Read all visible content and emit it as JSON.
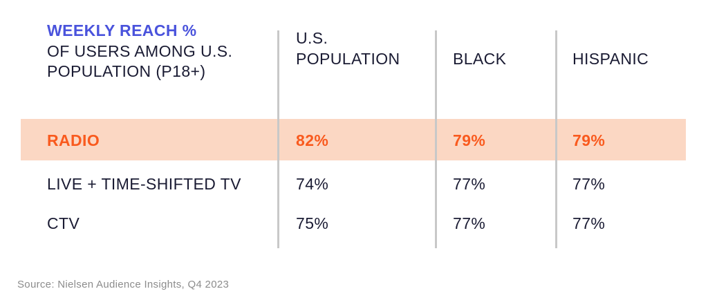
{
  "title": {
    "line1": "WEEKLY REACH %",
    "line2": "OF USERS AMONG U.S.",
    "line3": "POPULATION (P18+)"
  },
  "columns_display": {
    "us_population": "U.S.\nPOPULATION",
    "black": "BLACK",
    "hispanic": "HISPANIC"
  },
  "rows": [
    {
      "label": "RADIO",
      "values": [
        "82%",
        "79%",
        "79%"
      ],
      "highlighted": true
    },
    {
      "label": "LIVE + TIME-SHIFTED TV",
      "values": [
        "74%",
        "77%",
        "77%"
      ],
      "highlighted": false
    },
    {
      "label": "CTV",
      "values": [
        "75%",
        "77%",
        "77%"
      ],
      "highlighted": false
    }
  ],
  "source": "Source: Nielsen Audience Insights, Q4 2023",
  "colors": {
    "accent_blue": "#4A53DC",
    "navy_text": "#1A1B33",
    "highlight_orange_text": "#F95A1E",
    "highlight_band": "#FBD7C3",
    "divider_gray": "#C8C8C8",
    "source_gray": "#8C8C8C",
    "background": "#FFFFFF"
  },
  "chart_data": {
    "type": "table",
    "title": "WEEKLY REACH % OF USERS AMONG U.S. POPULATION (P18+)",
    "categories": [
      "RADIO",
      "LIVE + TIME-SHIFTED TV",
      "CTV"
    ],
    "series": [
      {
        "name": "U.S. POPULATION",
        "values": [
          82,
          74,
          75
        ]
      },
      {
        "name": "BLACK",
        "values": [
          79,
          77,
          77
        ]
      },
      {
        "name": "HISPANIC",
        "values": [
          79,
          77,
          77
        ]
      }
    ],
    "unit": "%",
    "highlighted_row": "RADIO",
    "source": "Source: Nielsen Audience Insights, Q4 2023"
  }
}
